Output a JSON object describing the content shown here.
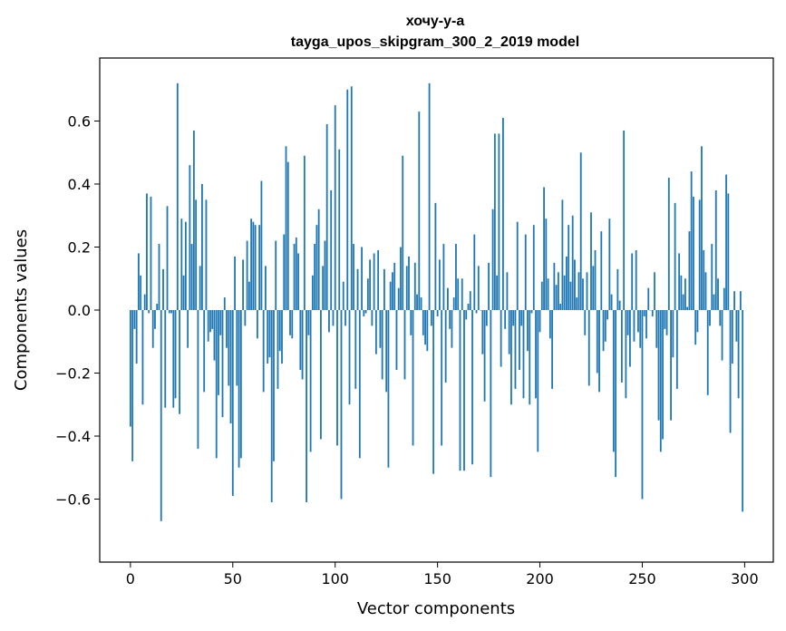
{
  "chart_data": {
    "type": "bar",
    "title": "хочу-у-а",
    "subtitle": "tayga_upos_skipgram_300_2_2019 model",
    "xlabel": "Vector components",
    "ylabel": "Components values",
    "xlim": [
      -15,
      314
    ],
    "ylim": [
      -0.8,
      0.8
    ],
    "xticks": [
      0,
      50,
      100,
      150,
      200,
      250,
      300
    ],
    "xtick_labels": [
      "0",
      "50",
      "100",
      "150",
      "200",
      "250",
      "300"
    ],
    "yticks": [
      -0.6,
      -0.4,
      -0.2,
      0.0,
      0.2,
      0.4,
      0.6
    ],
    "ytick_labels": [
      "−0.6",
      "−0.4",
      "−0.2",
      "0.0",
      "0.2",
      "0.4",
      "0.6"
    ],
    "bar_color": "#1f77b4",
    "x": [
      0,
      1,
      2,
      3,
      4,
      5,
      6,
      7,
      8,
      9,
      10,
      11,
      12,
      13,
      14,
      15,
      16,
      17,
      18,
      19,
      20,
      21,
      22,
      23,
      24,
      25,
      26,
      27,
      28,
      29,
      30,
      31,
      32,
      33,
      34,
      35,
      36,
      37,
      38,
      39,
      40,
      41,
      42,
      43,
      44,
      45,
      46,
      47,
      48,
      49,
      50,
      51,
      52,
      53,
      54,
      55,
      56,
      57,
      58,
      59,
      60,
      61,
      62,
      63,
      64,
      65,
      66,
      67,
      68,
      69,
      70,
      71,
      72,
      73,
      74,
      75,
      76,
      77,
      78,
      79,
      80,
      81,
      82,
      83,
      84,
      85,
      86,
      87,
      88,
      89,
      90,
      91,
      92,
      93,
      94,
      95,
      96,
      97,
      98,
      99,
      100,
      101,
      102,
      103,
      104,
      105,
      106,
      107,
      108,
      109,
      110,
      111,
      112,
      113,
      114,
      115,
      116,
      117,
      118,
      119,
      120,
      121,
      122,
      123,
      124,
      125,
      126,
      127,
      128,
      129,
      130,
      131,
      132,
      133,
      134,
      135,
      136,
      137,
      138,
      139,
      140,
      141,
      142,
      143,
      144,
      145,
      146,
      147,
      148,
      149,
      150,
      151,
      152,
      153,
      154,
      155,
      156,
      157,
      158,
      159,
      160,
      161,
      162,
      163,
      164,
      165,
      166,
      167,
      168,
      169,
      170,
      171,
      172,
      173,
      174,
      175,
      176,
      177,
      178,
      179,
      180,
      181,
      182,
      183,
      184,
      185,
      186,
      187,
      188,
      189,
      190,
      191,
      192,
      193,
      194,
      195,
      196,
      197,
      198,
      199,
      200,
      201,
      202,
      203,
      204,
      205,
      206,
      207,
      208,
      209,
      210,
      211,
      212,
      213,
      214,
      215,
      216,
      217,
      218,
      219,
      220,
      221,
      222,
      223,
      224,
      225,
      226,
      227,
      228,
      229,
      230,
      231,
      232,
      233,
      234,
      235,
      236,
      237,
      238,
      239,
      240,
      241,
      242,
      243,
      244,
      245,
      246,
      247,
      248,
      249,
      250,
      251,
      252,
      253,
      254,
      255,
      256,
      257,
      258,
      259,
      260,
      261,
      262,
      263,
      264,
      265,
      266,
      267,
      268,
      269,
      270,
      271,
      272,
      273,
      274,
      275,
      276,
      277,
      278,
      279,
      280,
      281,
      282,
      283,
      284,
      285,
      286,
      287,
      288,
      289,
      290,
      291,
      292,
      293,
      294,
      295,
      296,
      297,
      298,
      299
    ],
    "values": [
      -0.37,
      -0.48,
      -0.06,
      -0.17,
      0.18,
      0.11,
      -0.3,
      0.05,
      0.37,
      -0.01,
      0.36,
      -0.12,
      -0.06,
      0.02,
      0.21,
      -0.67,
      0.13,
      -0.31,
      0.33,
      -0.01,
      -0.01,
      -0.31,
      -0.28,
      0.72,
      -0.33,
      0.29,
      0.11,
      0.28,
      -0.12,
      0.46,
      0.21,
      0.57,
      0.35,
      -0.44,
      0.14,
      0.4,
      -0.26,
      0.35,
      -0.1,
      -0.07,
      -0.06,
      -0.16,
      -0.47,
      -0.27,
      -0.08,
      -0.34,
      0.04,
      -0.12,
      -0.24,
      -0.36,
      -0.59,
      0.17,
      -0.24,
      -0.5,
      -0.47,
      0.16,
      -0.05,
      0.22,
      0.09,
      0.29,
      0.28,
      0.27,
      -0.09,
      0.27,
      0.41,
      -0.26,
      0.14,
      -0.17,
      -0.15,
      -0.61,
      -0.48,
      0.22,
      -0.25,
      -0.13,
      -0.17,
      0.24,
      0.52,
      0.47,
      -0.08,
      -0.09,
      0.21,
      0.23,
      0.18,
      -0.19,
      -0.22,
      0.49,
      -0.61,
      -0.08,
      -0.45,
      0.11,
      0.21,
      0.27,
      0.32,
      -0.41,
      0.14,
      0.22,
      0.59,
      -0.07,
      0.38,
      -0.05,
      0.65,
      -0.43,
      0.51,
      -0.6,
      0.09,
      -0.05,
      0.7,
      -0.3,
      0.71,
      0.21,
      -0.25,
      0.13,
      -0.47,
      0.2,
      -0.02,
      -0.01,
      0.1,
      0.16,
      -0.05,
      0.18,
      -0.14,
      0.19,
      -0.12,
      -0.22,
      0.13,
      -0.26,
      -0.5,
      0.09,
      0.12,
      0.15,
      -0.19,
      0.07,
      0.2,
      0.49,
      -0.22,
      0.14,
      0.17,
      -0.08,
      -0.43,
      0.15,
      0.05,
      0.63,
      0.04,
      -0.08,
      -0.11,
      -0.13,
      0.72,
      -0.05,
      -0.52,
      0.34,
      -0.02,
      0.16,
      -0.43,
      0.21,
      -0.23,
      0.07,
      -0.06,
      -0.12,
      0.04,
      0.21,
      0.1,
      -0.51,
      0.1,
      -0.51,
      -0.03,
      0.02,
      0.06,
      -0.49,
      0.24,
      -0.01,
      0.14,
      0.0,
      -0.14,
      -0.29,
      -0.05,
      0.15,
      -0.53,
      0.32,
      0.56,
      0.11,
      0.56,
      -0.18,
      0.61,
      -0.06,
      0.12,
      -0.14,
      -0.3,
      -0.05,
      -0.25,
      0.28,
      -0.19,
      -0.05,
      -0.28,
      0.24,
      -0.13,
      -0.3,
      -0.01,
      0.27,
      -0.28,
      -0.45,
      -0.07,
      0.09,
      0.39,
      0.29,
      0.1,
      -0.09,
      -0.25,
      0.15,
      0.08,
      0.12,
      0.02,
      0.35,
      0.11,
      0.17,
      0.27,
      0.09,
      0.3,
      0.16,
      0.04,
      0.12,
      0.5,
      0.1,
      -0.08,
      0.12,
      -0.24,
      0.31,
      0.14,
      0.19,
      -0.2,
      -0.26,
      0.25,
      -0.13,
      -0.1,
      -0.03,
      0.29,
      0.05,
      -0.45,
      -0.53,
      0.13,
      0.03,
      -0.23,
      0.57,
      -0.28,
      -0.08,
      -0.18,
      0.18,
      -0.1,
      0.19,
      -0.07,
      -0.12,
      -0.6,
      -0.02,
      -0.09,
      0.07,
      0.0,
      -0.02,
      0.12,
      -0.12,
      -0.35,
      -0.45,
      -0.41,
      -0.06,
      -0.08,
      0.42,
      -0.35,
      -0.15,
      0.34,
      -0.25,
      0.18,
      0.11,
      0.05,
      0.1,
      0.01,
      0.25,
      0.44,
      0.36,
      -0.11,
      -0.07,
      0.35,
      0.52,
      0.19,
      0.12,
      -0.27,
      -0.05,
      0.21,
      0.05,
      0.38,
      0.1,
      -0.05,
      -0.16,
      0.07,
      0.43,
      0.37,
      -0.39,
      -0.17,
      0.06,
      -0.1,
      -0.28,
      0.06,
      -0.64
    ]
  }
}
